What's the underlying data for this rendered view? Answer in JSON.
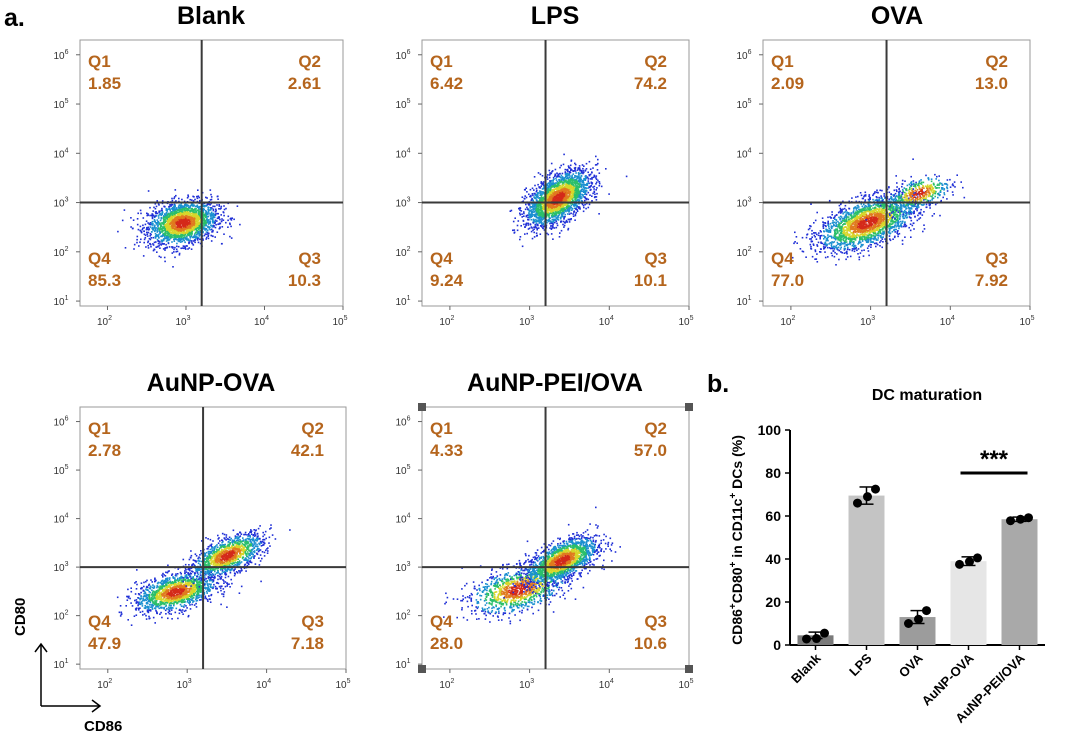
{
  "panel_labels": {
    "a": "a.",
    "b": "b."
  },
  "flow": {
    "x_ticks": [
      {
        "exp": 2,
        "label": "10",
        "sup": "2"
      },
      {
        "exp": 3,
        "label": "10",
        "sup": "3"
      },
      {
        "exp": 4,
        "label": "10",
        "sup": "4"
      },
      {
        "exp": 5,
        "label": "10",
        "sup": "5"
      }
    ],
    "y_ticks": [
      {
        "exp": 1,
        "label": "10",
        "sup": "1"
      },
      {
        "exp": 2,
        "label": "10",
        "sup": "2"
      },
      {
        "exp": 3,
        "label": "10",
        "sup": "3"
      },
      {
        "exp": 4,
        "label": "10",
        "sup": "4"
      },
      {
        "exp": 5,
        "label": "10",
        "sup": "5"
      },
      {
        "exp": 6,
        "label": "10",
        "sup": "6"
      }
    ],
    "x_range_log": [
      1.65,
      5.0
    ],
    "y_range_log": [
      0.9,
      6.3
    ],
    "gate_x_log": 3.2,
    "gate_y_log": 3.0,
    "quadrant_color": "#b5651d",
    "axis_x_label": "CD86",
    "axis_y_label": "CD80",
    "density_colors": [
      "#1f2fd6",
      "#1a8fd0",
      "#2bbf6a",
      "#d7d62a",
      "#e07a1f",
      "#d42a1a"
    ],
    "plots": [
      {
        "title": "Blank",
        "quadrants": {
          "Q1": "1.85",
          "Q2": "2.61",
          "Q3": "10.3",
          "Q4": "85.3"
        },
        "clusters": [
          {
            "cx": 2.95,
            "cy": 2.6,
            "sx": 0.22,
            "sy": 0.22,
            "r": 0.25,
            "n": 2200
          }
        ]
      },
      {
        "title": "LPS",
        "quadrant_labels": {
          "Q1": "Q1",
          "Q2": "Q2",
          "Q3": "Q3",
          "Q4": "Q4"
        },
        "quadrants": {
          "Q1": "6.42",
          "Q2": "74.2",
          "Q3": "10.1",
          "Q4": "9.24"
        },
        "clusters": [
          {
            "cx": 3.35,
            "cy": 3.1,
            "sx": 0.2,
            "sy": 0.28,
            "r": 0.55,
            "n": 2400
          }
        ]
      },
      {
        "title": "OVA",
        "quadrants": {
          "Q1": "2.09",
          "Q2": "13.0",
          "Q3": "7.92",
          "Q4": "77.0"
        },
        "clusters": [
          {
            "cx": 2.95,
            "cy": 2.6,
            "sx": 0.3,
            "sy": 0.28,
            "r": 0.55,
            "n": 2200
          },
          {
            "cx": 3.6,
            "cy": 3.2,
            "sx": 0.2,
            "sy": 0.18,
            "r": 0.5,
            "n": 400
          }
        ]
      },
      {
        "title": "AuNP-OVA",
        "quadrants": {
          "Q1": "2.78",
          "Q2": "42.1",
          "Q3": "7.18",
          "Q4": "47.9"
        },
        "clusters": [
          {
            "cx": 2.85,
            "cy": 2.5,
            "sx": 0.25,
            "sy": 0.2,
            "r": 0.45,
            "n": 1500
          },
          {
            "cx": 3.5,
            "cy": 3.25,
            "sx": 0.22,
            "sy": 0.22,
            "r": 0.6,
            "n": 1300
          }
        ]
      },
      {
        "title": "AuNP-PEI/OVA",
        "quadrants": {
          "Q1": "4.33",
          "Q2": "57.0",
          "Q3": "10.6",
          "Q4": "28.0"
        },
        "clusters": [
          {
            "cx": 2.85,
            "cy": 2.55,
            "sx": 0.3,
            "sy": 0.25,
            "r": 0.45,
            "n": 1100
          },
          {
            "cx": 3.4,
            "cy": 3.15,
            "sx": 0.22,
            "sy": 0.24,
            "r": 0.6,
            "n": 1700
          }
        ]
      }
    ]
  },
  "chart_data": {
    "type": "bar",
    "title": "DC maturation",
    "ylabel": "CD86+CD80+ in CD11c+ DCs (%)",
    "ylabel_parts": [
      {
        "t": "CD86",
        "sup": false
      },
      {
        "t": "+",
        "sup": true
      },
      {
        "t": "CD80",
        "sup": false
      },
      {
        "t": "+",
        "sup": true
      },
      {
        "t": " in CD11c",
        "sup": false
      },
      {
        "t": "+",
        "sup": true
      },
      {
        "t": " DCs (%)",
        "sup": false
      }
    ],
    "categories": [
      "Blank",
      "LPS",
      "OVA",
      "AuNP-OVA",
      "AuNP-PEI/OVA"
    ],
    "values": [
      4.5,
      69.5,
      13,
      39,
      58.5
    ],
    "errors": [
      1.5,
      4,
      3,
      2,
      1
    ],
    "points": [
      [
        2.8,
        5.5,
        3.0
      ],
      [
        66,
        72.5,
        69
      ],
      [
        10,
        16,
        12
      ],
      [
        37.5,
        40.5,
        38.8
      ],
      [
        57.8,
        59.2,
        58.5
      ]
    ],
    "bar_colors": [
      "#7a7a7a",
      "#c4c4c4",
      "#9c9c9c",
      "#e6e6e6",
      "#a9a9a9"
    ],
    "ylim": [
      0,
      100
    ],
    "yticks": [
      0,
      20,
      40,
      60,
      80,
      100
    ],
    "grid": false,
    "significance": {
      "between": [
        3,
        4
      ],
      "label": "***"
    }
  }
}
